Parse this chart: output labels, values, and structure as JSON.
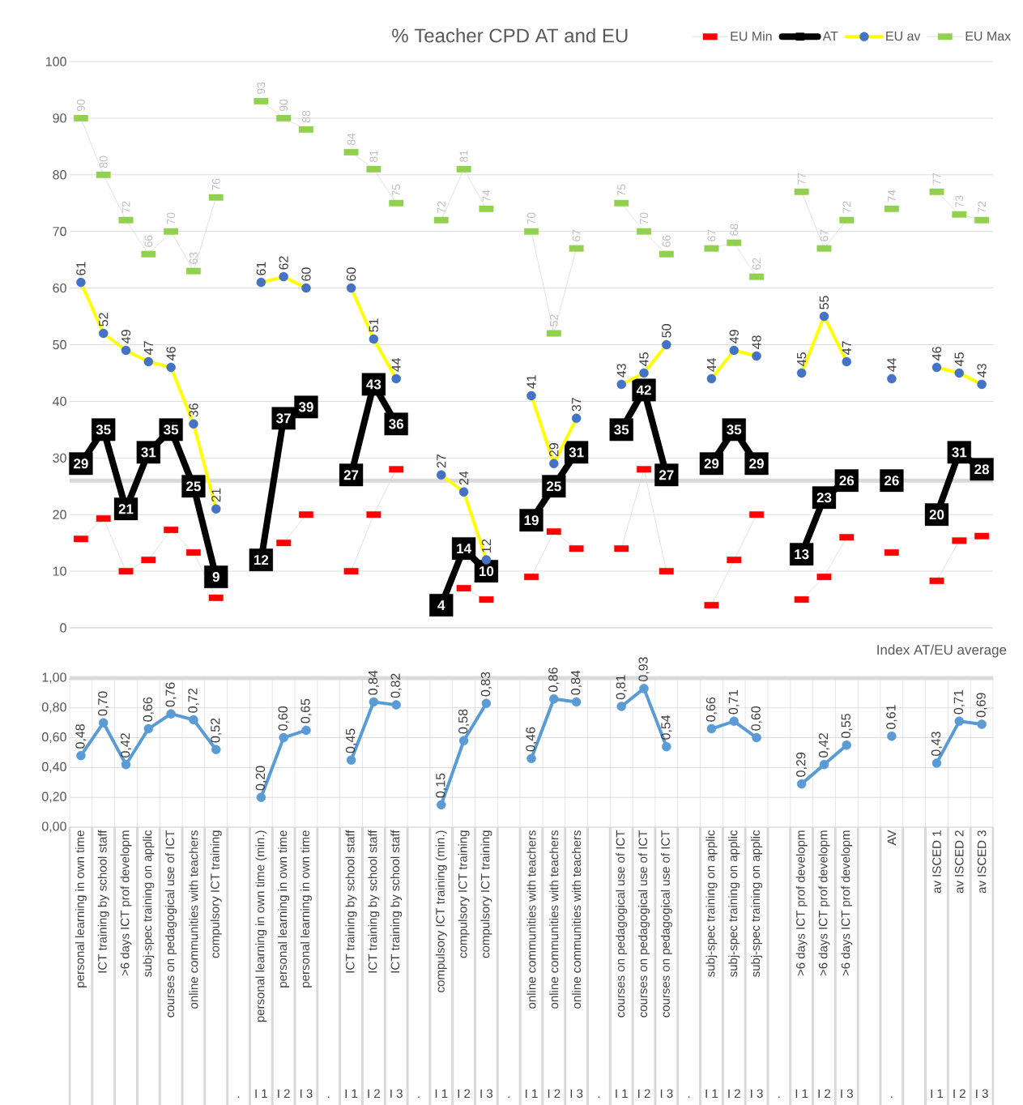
{
  "chart_data": [
    {
      "type": "line",
      "title": "% Teacher CPD AT and EU",
      "categories": [
        null,
        null,
        null,
        null,
        null,
        null,
        null,
        null,
        null,
        null,
        null,
        null,
        null,
        null,
        null,
        null,
        null,
        null,
        null,
        null,
        null,
        null,
        null,
        null,
        null,
        null,
        null,
        null,
        null,
        null,
        null,
        null,
        null,
        null,
        null,
        null,
        null,
        null,
        null,
        null,
        null
      ],
      "series": [
        {
          "name": "EU Min",
          "color": "#d9d9d9",
          "marker": "square",
          "values": [
            15.7,
            19.3,
            10,
            12,
            17.3,
            13.3,
            5.3,
            null,
            null,
            15,
            20,
            null,
            10,
            20,
            28,
            null,
            4,
            7,
            5,
            null,
            9,
            17,
            14,
            null,
            14,
            28,
            10,
            null,
            4,
            12,
            20,
            null,
            5,
            9,
            16,
            null,
            13.3,
            null,
            8.3,
            15.4,
            16.2
          ],
          "colors": [
            "#ff0000",
            "#ff0000",
            "#ff0000",
            "#ff0000",
            "#ff0000",
            "#ff0000",
            "#ff0000",
            null,
            null,
            "#ff0000",
            "#ff0000",
            null,
            "#ff0000",
            "#ff0000",
            "#ff0000",
            null,
            "#ff0000",
            "#ff0000",
            "#ff0000",
            null,
            "#ff0000",
            "#ff0000",
            "#ff0000",
            null,
            "#ff0000",
            "#ff0000",
            "#ff0000",
            null,
            "#ff0000",
            "#ff0000",
            "#ff0000",
            null,
            "#ff0000",
            "#ff0000",
            "#ff0000",
            null,
            "#ff0000",
            null,
            "#ff0000",
            "#ff0000",
            "#ff0000"
          ]
        },
        {
          "name": "AT",
          "color": "#000000",
          "marker": "square",
          "values": [
            29,
            35,
            21,
            31,
            35,
            25,
            9,
            null,
            12,
            37,
            39,
            null,
            27,
            43,
            36,
            null,
            4,
            14,
            10,
            null,
            19,
            25,
            31,
            null,
            35,
            42,
            27,
            null,
            29,
            35,
            29,
            null,
            13,
            23,
            26,
            null,
            26,
            null,
            20,
            31,
            28
          ],
          "value_labels": [
            "29",
            "35",
            "21",
            "31",
            "35",
            "25",
            "9",
            null,
            "12",
            "37",
            "39",
            null,
            "27",
            "43",
            "36",
            null,
            "4",
            "14",
            "10",
            null,
            "19",
            "25",
            "31",
            null,
            "35",
            "42",
            "27",
            null,
            "29",
            "35",
            "29",
            null,
            "13",
            "23",
            "26",
            null,
            "26",
            null,
            "20",
            "31",
            "28"
          ]
        },
        {
          "name": "EU av",
          "color": "#ffff00",
          "values": [
            61,
            52,
            49,
            47,
            46,
            36,
            21,
            null,
            61,
            62,
            60,
            null,
            60,
            51,
            44,
            null,
            27,
            24,
            12,
            null,
            41,
            29,
            37,
            null,
            43,
            45,
            50,
            null,
            44,
            49,
            48,
            null,
            45,
            55,
            47,
            null,
            44,
            null,
            46,
            45,
            43
          ],
          "colors": [
            "#4472c4",
            "#4472c4",
            "#4472c4",
            "#4472c4",
            "#4472c4",
            "#4472c4",
            "#4472c4",
            null,
            "#4472c4",
            "#4472c4",
            "#4472c4",
            null,
            "#4472c4",
            "#4472c4",
            "#4472c4",
            null,
            "#4472c4",
            "#4472c4",
            "#4472c4",
            null,
            "#4472c4",
            "#4472c4",
            "#4472c4",
            null,
            "#4472c4",
            "#4472c4",
            "#4472c4",
            null,
            "#4472c4",
            "#4472c4",
            "#4472c4",
            null,
            "#4472c4",
            "#4472c4",
            "#4472c4",
            null,
            "#4472c4",
            null,
            "#4472c4",
            "#4472c4",
            "#4472c4"
          ],
          "value_labels": [
            "61",
            "52",
            "49",
            "47",
            "46",
            "36",
            "21",
            null,
            "61",
            "62",
            "60",
            null,
            "60",
            "51",
            "44",
            null,
            "27",
            "24",
            "12",
            null,
            "41",
            "29",
            "37",
            null,
            "43",
            "45",
            "50",
            null,
            "44",
            "49",
            "48",
            null,
            "45",
            "55",
            "47",
            null,
            "44",
            null,
            "46",
            "45",
            "43"
          ]
        },
        {
          "name": "EU Max",
          "color": "#d9d9d9",
          "marker": "square",
          "values": [
            90,
            80,
            72,
            66,
            70,
            63,
            76,
            null,
            93,
            90,
            88,
            null,
            84,
            81,
            75,
            null,
            72,
            81,
            74,
            null,
            70,
            52,
            67,
            null,
            75,
            70,
            66,
            null,
            67,
            68,
            62,
            null,
            77,
            67,
            72,
            null,
            74,
            null,
            77,
            73,
            72
          ],
          "colors": [
            "#92d050",
            "#92d050",
            "#92d050",
            "#92d050",
            "#92d050",
            "#92d050",
            "#92d050",
            null,
            "#92d050",
            "#92d050",
            "#92d050",
            null,
            "#92d050",
            "#92d050",
            "#92d050",
            null,
            "#92d050",
            "#92d050",
            "#92d050",
            null,
            "#92d050",
            "#92d050",
            "#92d050",
            null,
            "#92d050",
            "#92d050",
            "#92d050",
            null,
            "#92d050",
            "#92d050",
            "#92d050",
            null,
            "#92d050",
            "#92d050",
            "#92d050",
            null,
            "#92d050",
            null,
            "#92d050",
            "#92d050",
            "#92d050"
          ],
          "value_labels": [
            "90",
            "80",
            "72",
            "66",
            "70",
            "63",
            "76",
            null,
            "93",
            "90",
            "88",
            null,
            "84",
            "81",
            "75",
            null,
            "72",
            "81",
            "74",
            null,
            "70",
            "52",
            "67",
            null,
            "75",
            "70",
            "66",
            null,
            "67",
            "68",
            "62",
            null,
            "77",
            "67",
            "72",
            null,
            "74",
            null,
            "77",
            "73",
            "72"
          ]
        }
      ],
      "ylim": [
        0,
        100
      ],
      "yticks": [
        0,
        10,
        20,
        30,
        40,
        50,
        60,
        70,
        80,
        90,
        100
      ],
      "grid": true,
      "legend": "top right",
      "marker": "circle",
      "tick_labels": "y",
      "ref_lines": [
        {
          "axis": "y",
          "value": 26,
          "color": "#d9d9d9"
        }
      ]
    },
    {
      "type": "line",
      "title": "Index AT/EU average",
      "categories": [
        "personal learning in own time",
        "ICT training by school staff",
        ">6 days ICT prof developm",
        "subj-spec training on applic",
        "courses on pedagogical use of ICT",
        "online communities with teachers",
        "compulsory ICT training",
        null,
        "personal learning in own time (min.)",
        "personal learning in own time",
        "personal learning in own time",
        null,
        "ICT training by school staff",
        "ICT training by school staff",
        "ICT training by school staff",
        null,
        "compulsory ICT training (min.)",
        "compulsory ICT training",
        "compulsory ICT training",
        null,
        "online communities with teachers",
        "online communities with teachers",
        "online communities with teachers",
        null,
        "courses on pedagogical use of ICT",
        "courses on pedagogical use of ICT",
        "courses on pedagogical use of ICT",
        null,
        "subj-spec training on applic",
        "subj-spec training on applic",
        "subj-spec training on applic",
        null,
        ">6 days ICT prof developm",
        ">6 days ICT prof developm",
        ">6 days ICT prof developm",
        null,
        "AV",
        null,
        "av ISCED 1",
        "av ISCED 2",
        "av ISCED 3"
      ],
      "values": [
        0.48,
        0.7,
        0.42,
        0.66,
        0.76,
        0.72,
        0.52,
        null,
        0.2,
        0.6,
        0.65,
        null,
        0.45,
        0.84,
        0.82,
        null,
        0.15,
        0.58,
        0.83,
        null,
        0.46,
        0.86,
        0.84,
        null,
        0.81,
        0.93,
        0.54,
        null,
        0.66,
        0.71,
        0.6,
        null,
        0.29,
        0.42,
        0.55,
        null,
        0.61,
        null,
        0.43,
        0.71,
        0.69
      ],
      "value_labels": [
        "0,48",
        "0,70",
        "0,42",
        "0,66",
        "0,76",
        "0,72",
        "0,52",
        null,
        "0,20",
        "0,60",
        "0,65",
        null,
        "0,45",
        "0,84",
        "0,82",
        null,
        "0,15",
        "0,58",
        "0,83",
        null,
        "0,46",
        "0,86",
        "0,84",
        null,
        "0,81",
        "0,93",
        "0,54",
        null,
        "0,66",
        "0,71",
        "0,60",
        null,
        "0,29",
        "0,42",
        "0,55",
        null,
        "0,61",
        null,
        "0,43",
        "0,71",
        "0,69"
      ],
      "color": "#5b9bd5",
      "marker": "circle",
      "ylim": [
        0,
        1
      ],
      "yticks": [
        {
          "value": 0,
          "label": "0,00"
        },
        {
          "value": 0.2,
          "label": "0,20"
        },
        {
          "value": 0.4,
          "label": "0,40"
        },
        {
          "value": 0.6,
          "label": "0,60"
        },
        {
          "value": 0.8,
          "label": "0,80"
        },
        {
          "value": 1,
          "label": "1,00"
        }
      ],
      "annotations": [
        ".",
        "I 1",
        "I 2",
        "I 3",
        ".",
        "I 1",
        "I 2",
        "I 3",
        ".",
        "I 1",
        "I 2",
        "I 3",
        ".",
        "I 1",
        "I 2",
        "I 3",
        ".",
        "I 1",
        "I 2",
        "I 3",
        ".",
        "I 1",
        "I 2",
        "I 3",
        ".",
        "I 1",
        "I 2",
        "I 3",
        ".",
        "I 1",
        "I 2",
        "I 3"
      ],
      "grid": true,
      "ref_lines": [
        {
          "axis": "y",
          "value": 1,
          "color": "#d9d9d9"
        }
      ]
    }
  ]
}
